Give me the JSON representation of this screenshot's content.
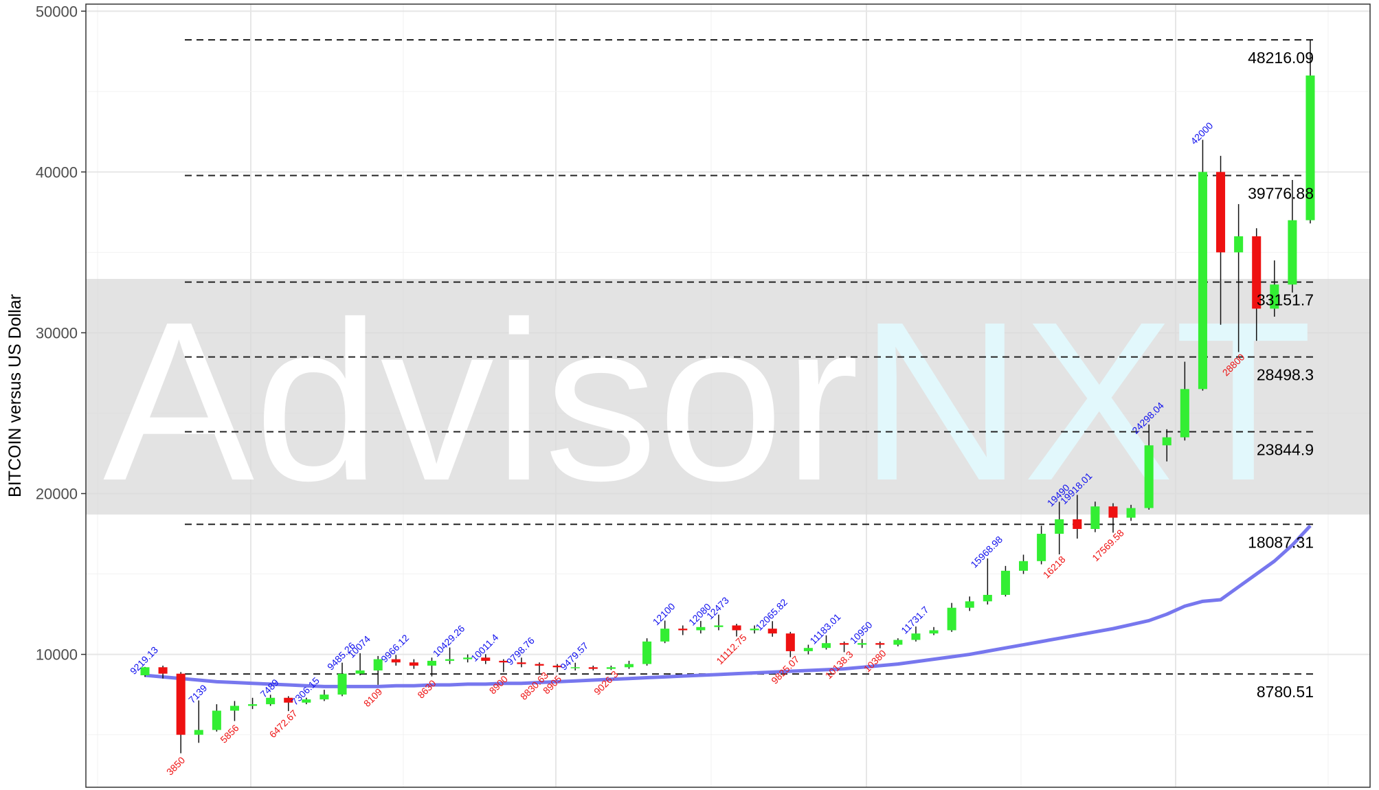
{
  "chart_data": {
    "type": "candlestick",
    "y_label": "BITCOIN versus US Dollar",
    "watermark": {
      "left": "Advisor",
      "right": "NXT"
    },
    "ylim": [
      1737,
      50438
    ],
    "yticks": [
      10000,
      20000,
      30000,
      40000,
      50000
    ],
    "grid": true,
    "up_color": "#33ee33",
    "down_color": "#ee1111",
    "open": [
      8700,
      9200,
      8800,
      5000,
      5300,
      6500,
      6800,
      6900,
      7300,
      7000,
      7200,
      7500,
      8800,
      9000,
      9700,
      9500,
      9300,
      9600,
      9700,
      9800,
      9600,
      9500,
      9400,
      9300,
      9200,
      9200,
      9100,
      9200,
      9400,
      10800,
      11600,
      11500,
      11700,
      11800,
      11500,
      11600,
      11300,
      10200,
      10400,
      10700,
      10600,
      10700,
      10600,
      10900,
      11300,
      11500,
      12900,
      13300,
      13700,
      15200,
      15800,
      17500,
      18400,
      17800,
      19200,
      18500,
      19100,
      23000,
      23500,
      26500,
      40000,
      35000,
      36000,
      31500,
      33000,
      37000
    ],
    "high": [
      9219.13,
      9300,
      8900,
      7139,
      6900,
      7100,
      7300,
      7489,
      7400,
      7306.15,
      7800,
      9485.26,
      10074,
      9900,
      9966.12,
      9700,
      9800,
      10429.26,
      10000,
      10011.4,
      9700,
      9798.76,
      9500,
      9400,
      9479.57,
      9300,
      9300,
      9600,
      11000,
      12100,
      11800,
      12080,
      12473,
      11900,
      11800,
      12065.82,
      11400,
      10600,
      11183.01,
      10800,
      10950,
      10800,
      11000,
      11731.7,
      11700,
      13200,
      13600,
      15968.98,
      15500,
      16200,
      18000,
      19490,
      19918.01,
      19500,
      19400,
      19300,
      24298.04,
      24000,
      28200,
      42000,
      41000,
      38000,
      36500,
      34500,
      39500,
      48216.09
    ],
    "low": [
      8600,
      8500,
      3850,
      4500,
      5200,
      5856,
      6600,
      6800,
      6472.67,
      6900,
      7100,
      7400,
      8700,
      8109,
      9300,
      9100,
      8630,
      9400,
      9500,
      9400,
      8900,
      9200,
      8830.63,
      8905,
      9000,
      9000,
      9026.3,
      9100,
      9300,
      10700,
      11200,
      11300,
      11500,
      11112.75,
      11300,
      11100,
      9825.07,
      10000,
      10300,
      10138.3,
      10400,
      10380,
      10500,
      10800,
      11200,
      11400,
      12700,
      13100,
      13600,
      15000,
      15600,
      16218,
      17200,
      17600,
      17569.58,
      18300,
      19000,
      22000,
      23300,
      26400,
      30500,
      28800,
      29500,
      31000,
      32500,
      36800
    ],
    "close": [
      9200,
      8800,
      5000,
      5300,
      6500,
      6800,
      6900,
      7300,
      7000,
      7200,
      7500,
      8800,
      9000,
      9700,
      9500,
      9300,
      9600,
      9700,
      9800,
      9600,
      9500,
      9400,
      9300,
      9200,
      9200,
      9100,
      9200,
      9400,
      10800,
      11600,
      11500,
      11700,
      11800,
      11500,
      11600,
      11300,
      10200,
      10400,
      10700,
      10600,
      10700,
      10600,
      10900,
      11300,
      11500,
      12900,
      13300,
      13700,
      15200,
      15800,
      17500,
      18400,
      17800,
      19200,
      18500,
      19100,
      23000,
      23500,
      26500,
      40000,
      35000,
      36000,
      31500,
      33000,
      37000,
      46000
    ],
    "high_labels": [
      9219.13,
      null,
      null,
      7139,
      null,
      null,
      null,
      7489,
      null,
      7306.15,
      null,
      9485.26,
      10074,
      null,
      9966.12,
      null,
      null,
      10429.26,
      null,
      10011.4,
      null,
      9798.76,
      null,
      null,
      9479.57,
      null,
      null,
      null,
      null,
      12100,
      null,
      12080,
      12473,
      null,
      null,
      12065.82,
      null,
      null,
      11183.01,
      null,
      10950,
      null,
      null,
      11731.7,
      null,
      null,
      null,
      15968.98,
      null,
      null,
      null,
      19490,
      19918.01,
      null,
      null,
      null,
      24298.04,
      null,
      null,
      42000,
      null,
      null,
      null,
      null,
      null,
      null
    ],
    "low_labels": [
      null,
      null,
      3850,
      null,
      null,
      5856,
      null,
      null,
      6472.67,
      null,
      null,
      null,
      null,
      8109,
      null,
      null,
      8630,
      null,
      null,
      null,
      8900,
      null,
      8830.63,
      8905,
      null,
      null,
      9026.3,
      null,
      null,
      null,
      null,
      null,
      null,
      11112.75,
      null,
      null,
      9825.07,
      null,
      null,
      10138.3,
      null,
      10380,
      null,
      null,
      null,
      null,
      null,
      null,
      null,
      null,
      null,
      16218,
      null,
      null,
      17569.58,
      null,
      null,
      null,
      null,
      null,
      null,
      28800,
      null,
      null,
      null,
      null
    ],
    "moving_average": {
      "color": "#7777ee",
      "values": [
        8700,
        8600,
        8500,
        8400,
        8300,
        8250,
        8200,
        8150,
        8100,
        8050,
        8000,
        8000,
        8000,
        8000,
        8050,
        8050,
        8100,
        8100,
        8150,
        8150,
        8200,
        8200,
        8250,
        8300,
        8350,
        8400,
        8450,
        8500,
        8550,
        8600,
        8650,
        8700,
        8750,
        8800,
        8850,
        8900,
        8950,
        9000,
        9050,
        9100,
        9200,
        9300,
        9400,
        9550,
        9700,
        9850,
        10000,
        10200,
        10400,
        10600,
        10800,
        11000,
        11200,
        11400,
        11600,
        11850,
        12100,
        12500,
        13000,
        13300,
        13400,
        14200,
        15000,
        15800,
        16800,
        18000
      ]
    },
    "levels": [
      48216.09,
      39776.88,
      33151.7,
      28498.3,
      23844.9,
      18087.31,
      8780.51
    ]
  }
}
